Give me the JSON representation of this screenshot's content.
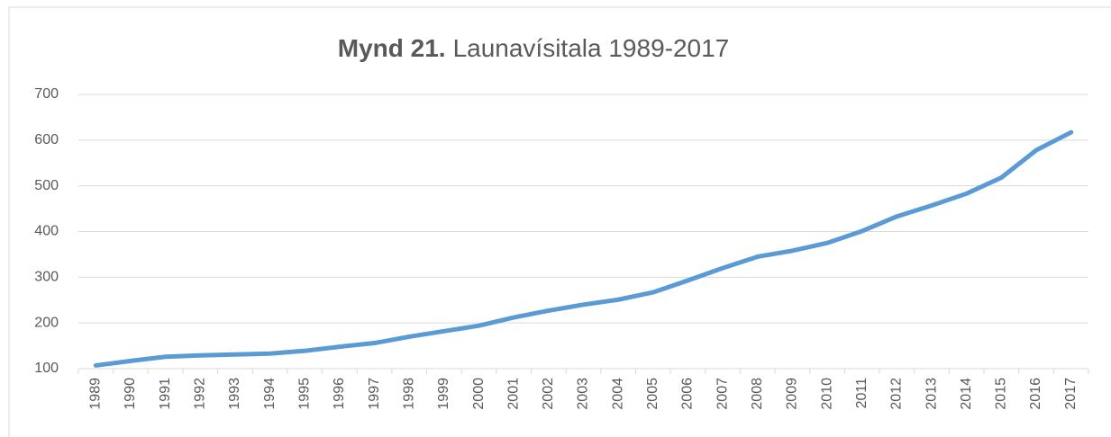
{
  "chart_data": {
    "type": "line",
    "title_label": "Mynd 21.",
    "title": "Launavísitala 1989-2017",
    "categories": [
      "1989",
      "1990",
      "1991",
      "1992",
      "1993",
      "1994",
      "1995",
      "1996",
      "1997",
      "1998",
      "1999",
      "2000",
      "2001",
      "2002",
      "2003",
      "2004",
      "2005",
      "2006",
      "2007",
      "2008",
      "2009",
      "2010",
      "2011",
      "2012",
      "2013",
      "2014",
      "2015",
      "2016",
      "2017"
    ],
    "values": [
      107,
      117,
      126,
      129,
      131,
      133,
      139,
      148,
      156,
      170,
      182,
      194,
      212,
      227,
      240,
      251,
      267,
      293,
      320,
      345,
      358,
      375,
      401,
      433,
      457,
      483,
      518,
      578,
      617
    ],
    "color": "#5b9bd5",
    "ylim": [
      100,
      700
    ],
    "yticks": [
      100,
      200,
      300,
      400,
      500,
      600,
      700
    ],
    "grid": true
  }
}
